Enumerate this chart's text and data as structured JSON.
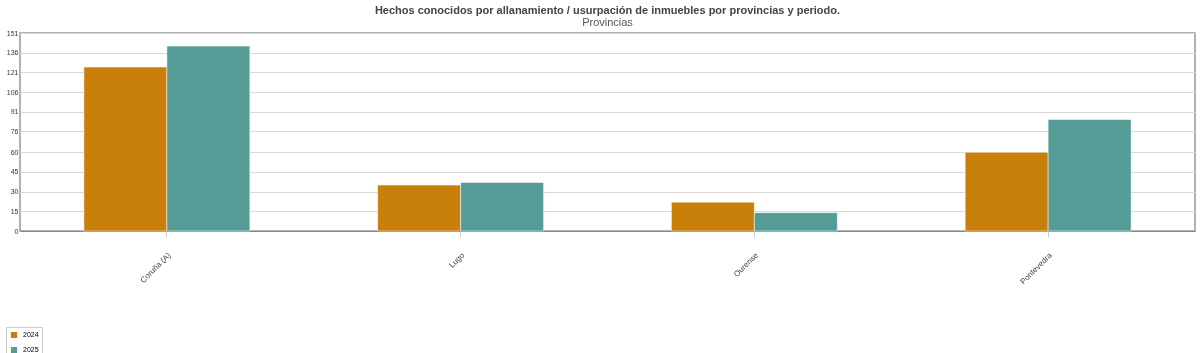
{
  "chart_data": {
    "type": "bar",
    "title": "Hechos conocidos por allanamiento / usurpación de inmuebles por  provincias y periodo.",
    "subtitle": "Provincias",
    "categories": [
      "Coruña (A)",
      "Lugo",
      "Ourense",
      "Pontevedra"
    ],
    "series": [
      {
        "name": "2024",
        "color": "#c8800a",
        "values": [
          125,
          35,
          22,
          60
        ]
      },
      {
        "name": "2025",
        "color": "#569c96",
        "values": [
          141,
          37,
          14,
          85
        ]
      }
    ],
    "ylim": [
      0,
      151
    ],
    "yticks": [
      0,
      15,
      30,
      45,
      60,
      76,
      91,
      106,
      121,
      136,
      151
    ],
    "grid": true,
    "legend": "bottom left"
  }
}
